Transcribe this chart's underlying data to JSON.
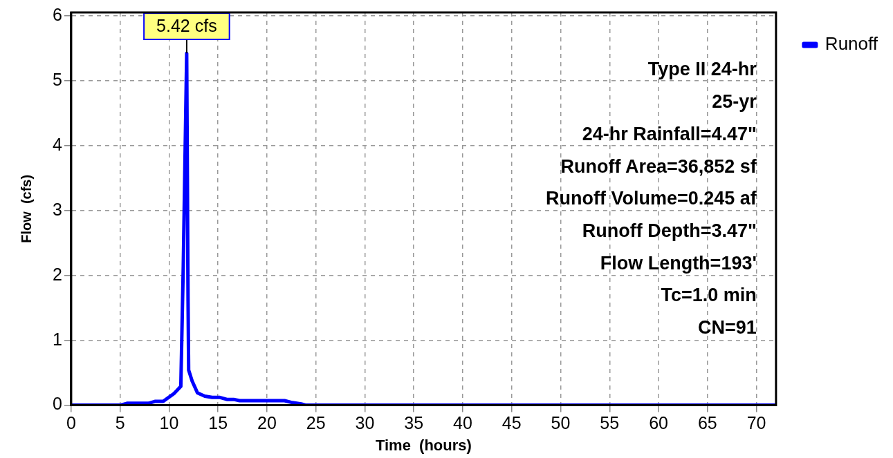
{
  "chart_data": {
    "type": "line",
    "xlabel": "Time  (hours)",
    "ylabel": "Flow  (cfs)",
    "xlim": [
      0,
      72
    ],
    "xticks": [
      0,
      5,
      10,
      15,
      20,
      25,
      30,
      35,
      40,
      45,
      50,
      55,
      60,
      65,
      70
    ],
    "ylim": [
      0,
      6.05
    ],
    "yticks": [
      0,
      1,
      2,
      3,
      4,
      5,
      6
    ],
    "grid": true,
    "legend": "top right",
    "series": [
      {
        "name": "Runoff",
        "color": "#0000ff",
        "x": [
          0,
          5,
          5.7,
          7.9,
          8.6,
          9.4,
          10.5,
          11.2,
          11.45,
          11.8,
          11.94,
          12.0,
          12.36,
          12.6,
          12.9,
          13.65,
          14.4,
          15.2,
          15.9,
          16.6,
          17.2,
          21.8,
          22.6,
          23.5,
          24.0,
          72
        ],
        "values": [
          0,
          0,
          0.03,
          0.03,
          0.06,
          0.06,
          0.18,
          0.29,
          2.14,
          5.42,
          1.6,
          0.54,
          0.37,
          0.29,
          0.19,
          0.14,
          0.12,
          0.12,
          0.09,
          0.09,
          0.07,
          0.07,
          0.04,
          0.02,
          0,
          0
        ]
      }
    ],
    "annotations": [
      {
        "text": "5.42 cfs",
        "x": 11.8,
        "y": 5.42
      },
      "Type II 24-hr",
      "25-yr",
      "24-hr Rainfall=4.47\"",
      "Runoff Area=36,852 sf",
      "Runoff Volume=0.245 af",
      "Runoff Depth=3.47\"",
      "Flow Length=193'",
      "Tc=1.0 min",
      "CN=91"
    ]
  }
}
